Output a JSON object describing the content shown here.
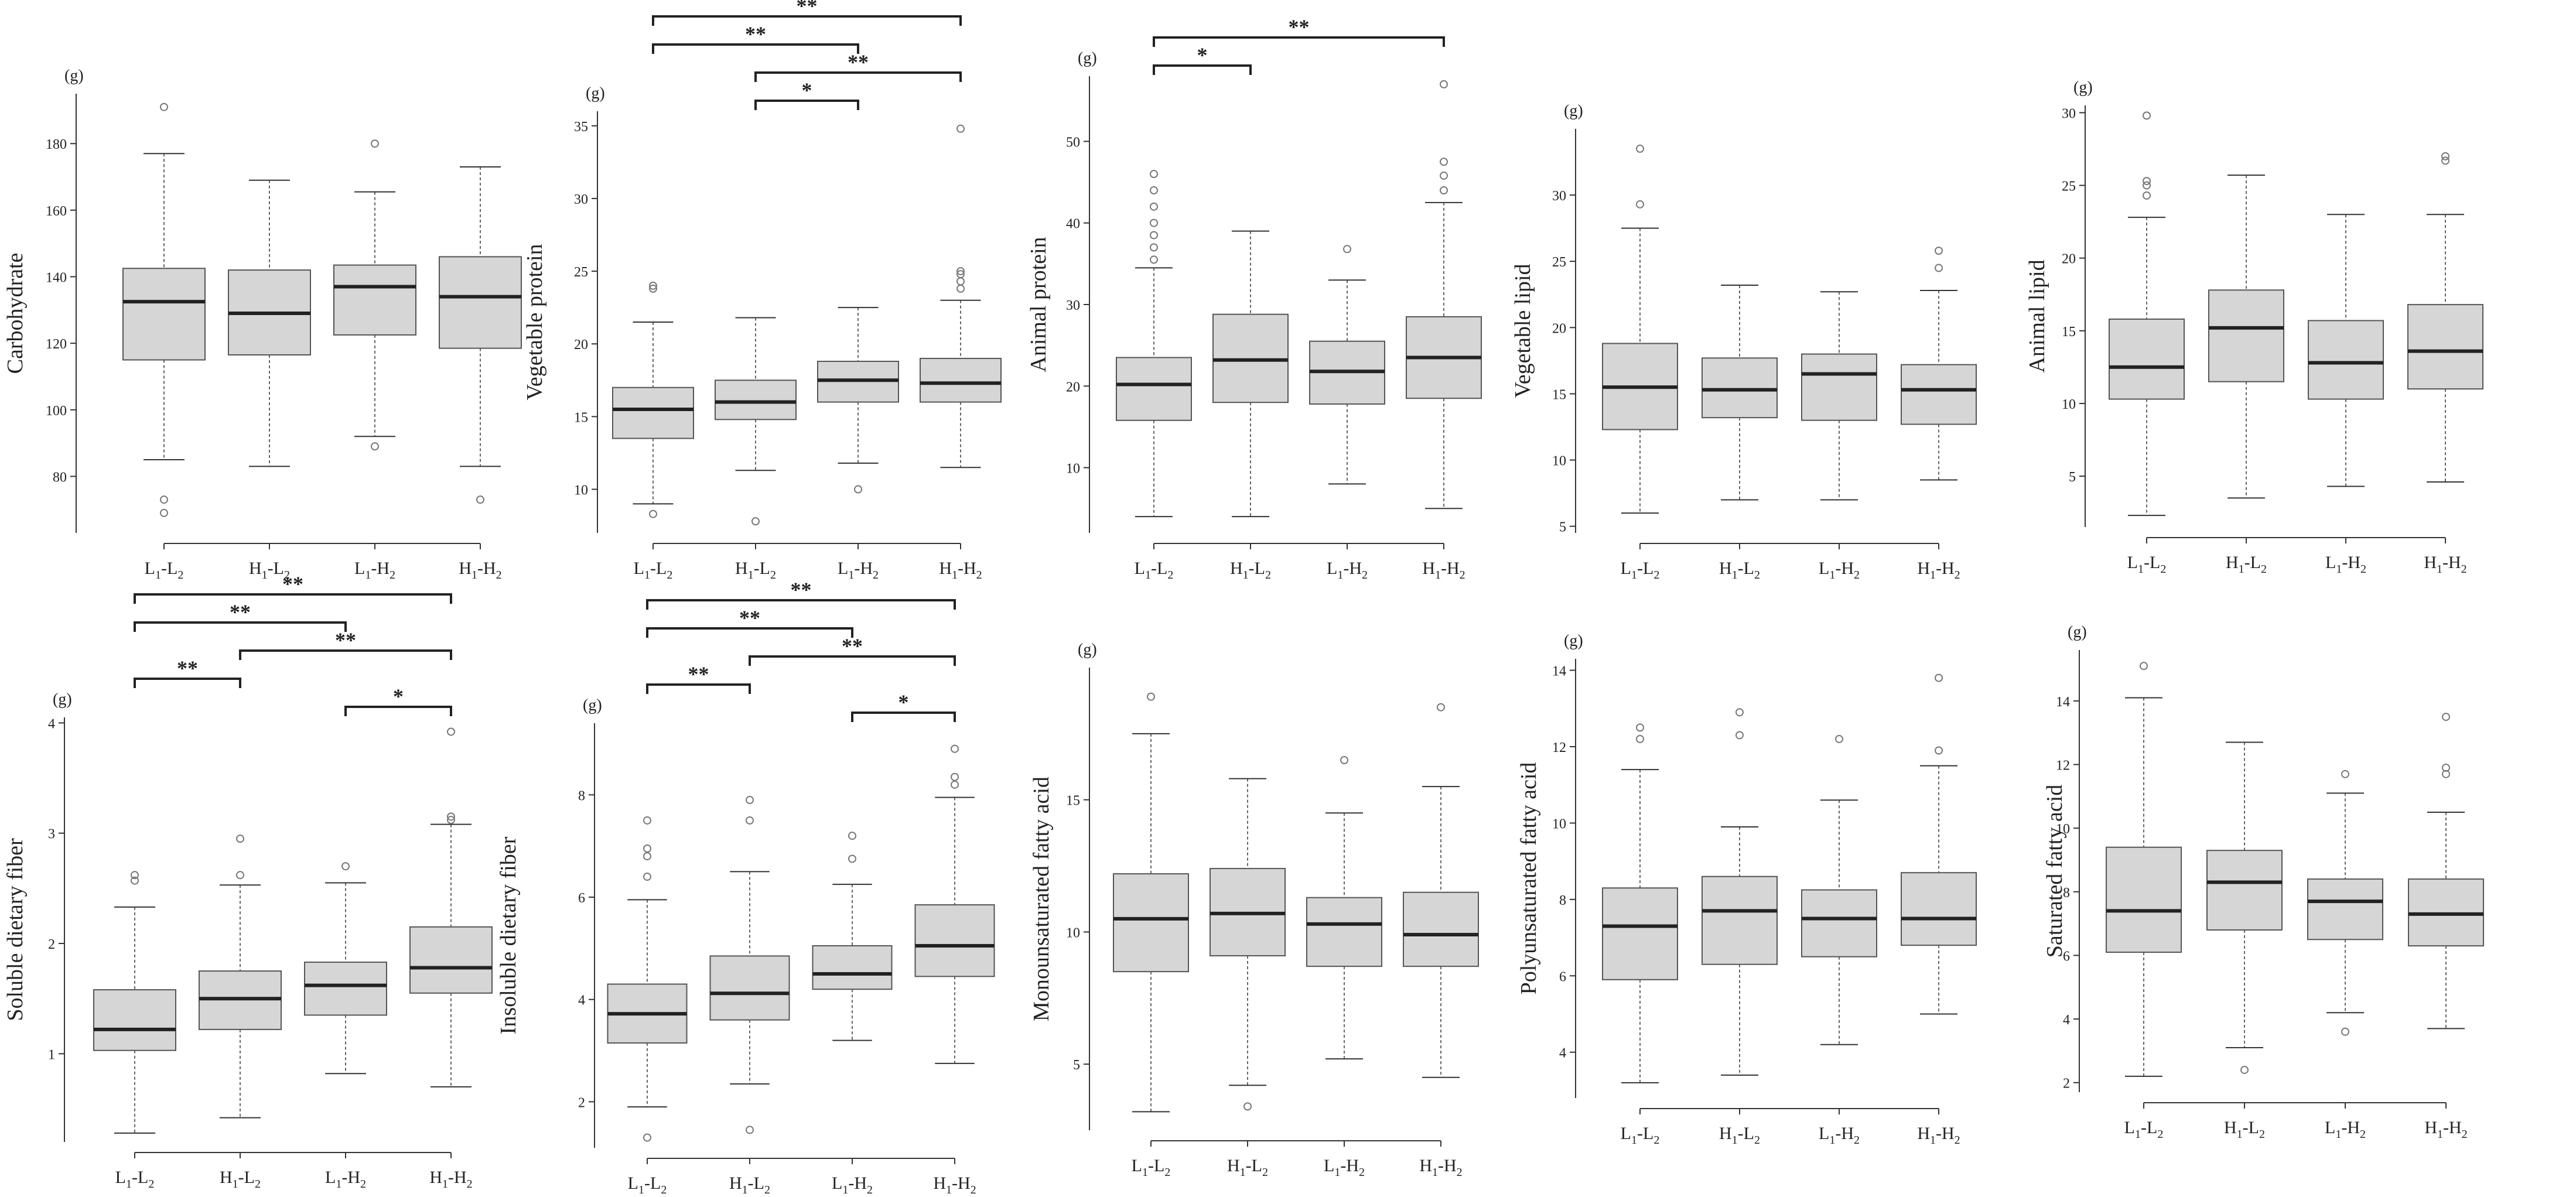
{
  "style": {
    "box_fill": "#d6d6d6",
    "box_stroke": "#555555",
    "median_color": "#222222",
    "axis_color": "#333333",
    "whisker_color": "#666666",
    "outlier_color": "#777777",
    "bracket_color": "#222222"
  },
  "chart_data": [
    {
      "type": "box",
      "unit_label": "(g)",
      "ylabel": "Carbohydrate",
      "yticks": [
        80,
        100,
        120,
        140,
        160,
        180
      ],
      "ylim": [
        63,
        195
      ],
      "categories": [
        {
          "pre": "L",
          "sub1": "1",
          "mid": "-L",
          "sub2": "2"
        },
        {
          "pre": "H",
          "sub1": "1",
          "mid": "-L",
          "sub2": "2"
        },
        {
          "pre": "L",
          "sub1": "1",
          "mid": "-H",
          "sub2": "2"
        },
        {
          "pre": "H",
          "sub1": "1",
          "mid": "-H",
          "sub2": "2"
        }
      ],
      "boxes": [
        {
          "min": 85,
          "q1": 115,
          "median": 132.5,
          "q3": 142.5,
          "max": 177,
          "outliers": [
            191,
            73,
            69
          ]
        },
        {
          "min": 83,
          "q1": 116.5,
          "median": 129,
          "q3": 142,
          "max": 169,
          "outliers": []
        },
        {
          "min": 92,
          "q1": 122.5,
          "median": 137,
          "q3": 143.5,
          "max": 165.5,
          "outliers": [
            180,
            89
          ]
        },
        {
          "min": 83,
          "q1": 118.5,
          "median": 134,
          "q3": 146,
          "max": 173,
          "outliers": [
            73
          ]
        }
      ],
      "brackets": []
    },
    {
      "type": "box",
      "unit_label": "(g)",
      "ylabel": "Vegetable protein",
      "yticks": [
        10,
        15,
        20,
        25,
        30,
        35
      ],
      "ylim": [
        7,
        36
      ],
      "categories": [
        {
          "pre": "L",
          "sub1": "1",
          "mid": "-L",
          "sub2": "2"
        },
        {
          "pre": "H",
          "sub1": "1",
          "mid": "-L",
          "sub2": "2"
        },
        {
          "pre": "L",
          "sub1": "1",
          "mid": "-H",
          "sub2": "2"
        },
        {
          "pre": "H",
          "sub1": "1",
          "mid": "-H",
          "sub2": "2"
        }
      ],
      "boxes": [
        {
          "min": 9,
          "q1": 13.5,
          "median": 15.5,
          "q3": 17,
          "max": 21.5,
          "outliers": [
            23.8,
            24,
            8.3
          ]
        },
        {
          "min": 11.3,
          "q1": 14.8,
          "median": 16,
          "q3": 17.5,
          "max": 21.8,
          "outliers": [
            7.8
          ]
        },
        {
          "min": 11.8,
          "q1": 16,
          "median": 17.5,
          "q3": 18.8,
          "max": 22.5,
          "outliers": [
            10
          ]
        },
        {
          "min": 11.5,
          "q1": 16,
          "median": 17.3,
          "q3": 19,
          "max": 23,
          "outliers": [
            23.8,
            24.3,
            24.8,
            25,
            34.8
          ]
        }
      ],
      "brackets": [
        {
          "from": 0,
          "to": 3,
          "label": "**"
        },
        {
          "from": 0,
          "to": 2,
          "label": "**"
        },
        {
          "from": 1,
          "to": 3,
          "label": "**"
        },
        {
          "from": 1,
          "to": 2,
          "label": "*"
        }
      ]
    },
    {
      "type": "box",
      "unit_label": "(g)",
      "ylabel": "Animal protein",
      "yticks": [
        10,
        20,
        30,
        40,
        50
      ],
      "ylim": [
        2,
        58
      ],
      "categories": [
        {
          "pre": "L",
          "sub1": "1",
          "mid": "-L",
          "sub2": "2"
        },
        {
          "pre": "H",
          "sub1": "1",
          "mid": "-L",
          "sub2": "2"
        },
        {
          "pre": "L",
          "sub1": "1",
          "mid": "-H",
          "sub2": "2"
        },
        {
          "pre": "H",
          "sub1": "1",
          "mid": "-H",
          "sub2": "2"
        }
      ],
      "boxes": [
        {
          "min": 4,
          "q1": 15.8,
          "median": 20.2,
          "q3": 23.5,
          "max": 34.5,
          "outliers": [
            35.5,
            37,
            38.5,
            40,
            42,
            44,
            46
          ]
        },
        {
          "min": 4,
          "q1": 18,
          "median": 23.2,
          "q3": 28.8,
          "max": 39,
          "outliers": []
        },
        {
          "min": 8,
          "q1": 17.8,
          "median": 21.8,
          "q3": 25.5,
          "max": 33,
          "outliers": [
            36.8
          ]
        },
        {
          "min": 5,
          "q1": 18.5,
          "median": 23.5,
          "q3": 28.5,
          "max": 42.5,
          "outliers": [
            44,
            45.8,
            47.5,
            57
          ]
        }
      ],
      "brackets": [
        {
          "from": 0,
          "to": 3,
          "label": "**"
        },
        {
          "from": 0,
          "to": 1,
          "label": "*"
        }
      ]
    },
    {
      "type": "box",
      "unit_label": "(g)",
      "ylabel": "Vegetable lipid",
      "yticks": [
        5,
        10,
        15,
        20,
        25,
        30
      ],
      "ylim": [
        4.5,
        35
      ],
      "categories": [
        {
          "pre": "L",
          "sub1": "1",
          "mid": "-L",
          "sub2": "2"
        },
        {
          "pre": "H",
          "sub1": "1",
          "mid": "-L",
          "sub2": "2"
        },
        {
          "pre": "L",
          "sub1": "1",
          "mid": "-H",
          "sub2": "2"
        },
        {
          "pre": "H",
          "sub1": "1",
          "mid": "-H",
          "sub2": "2"
        }
      ],
      "boxes": [
        {
          "min": 6,
          "q1": 12.3,
          "median": 15.5,
          "q3": 18.8,
          "max": 27.5,
          "outliers": [
            29.3,
            33.5
          ]
        },
        {
          "min": 7,
          "q1": 13.2,
          "median": 15.3,
          "q3": 17.7,
          "max": 23.2,
          "outliers": []
        },
        {
          "min": 7,
          "q1": 13,
          "median": 16.5,
          "q3": 18,
          "max": 22.7,
          "outliers": []
        },
        {
          "min": 8.5,
          "q1": 12.7,
          "median": 15.3,
          "q3": 17.2,
          "max": 22.8,
          "outliers": [
            24.5,
            25.8
          ]
        }
      ],
      "brackets": []
    },
    {
      "type": "box",
      "unit_label": "(g)",
      "ylabel": "Animal lipid",
      "yticks": [
        5,
        10,
        15,
        20,
        25,
        30
      ],
      "ylim": [
        1.5,
        30.5
      ],
      "categories": [
        {
          "pre": "L",
          "sub1": "1",
          "mid": "-L",
          "sub2": "2"
        },
        {
          "pre": "H",
          "sub1": "1",
          "mid": "-L",
          "sub2": "2"
        },
        {
          "pre": "L",
          "sub1": "1",
          "mid": "-H",
          "sub2": "2"
        },
        {
          "pre": "H",
          "sub1": "1",
          "mid": "-H",
          "sub2": "2"
        }
      ],
      "boxes": [
        {
          "min": 2.3,
          "q1": 10.3,
          "median": 12.5,
          "q3": 15.8,
          "max": 22.8,
          "outliers": [
            24.3,
            25,
            25.3,
            29.8
          ]
        },
        {
          "min": 3.5,
          "q1": 11.5,
          "median": 15.2,
          "q3": 17.8,
          "max": 25.7,
          "outliers": []
        },
        {
          "min": 4.3,
          "q1": 10.3,
          "median": 12.8,
          "q3": 15.7,
          "max": 23,
          "outliers": []
        },
        {
          "min": 4.6,
          "q1": 11,
          "median": 13.6,
          "q3": 16.8,
          "max": 23,
          "outliers": [
            26.7,
            27
          ]
        }
      ],
      "brackets": []
    },
    {
      "type": "box",
      "unit_label": "(g)",
      "ylabel": "Soluble dietary fiber",
      "yticks": [
        1,
        2,
        3,
        4
      ],
      "ylim": [
        0.2,
        4.05
      ],
      "categories": [
        {
          "pre": "L",
          "sub1": "1",
          "mid": "-L",
          "sub2": "2"
        },
        {
          "pre": "H",
          "sub1": "1",
          "mid": "-L",
          "sub2": "2"
        },
        {
          "pre": "L",
          "sub1": "1",
          "mid": "-H",
          "sub2": "2"
        },
        {
          "pre": "H",
          "sub1": "1",
          "mid": "-H",
          "sub2": "2"
        }
      ],
      "boxes": [
        {
          "min": 0.28,
          "q1": 1.03,
          "median": 1.22,
          "q3": 1.58,
          "max": 2.33,
          "outliers": [
            2.57,
            2.62
          ]
        },
        {
          "min": 0.42,
          "q1": 1.22,
          "median": 1.5,
          "q3": 1.75,
          "max": 2.53,
          "outliers": [
            2.62,
            2.95
          ]
        },
        {
          "min": 0.82,
          "q1": 1.35,
          "median": 1.62,
          "q3": 1.83,
          "max": 2.55,
          "outliers": [
            2.7
          ]
        },
        {
          "min": 0.7,
          "q1": 1.55,
          "median": 1.78,
          "q3": 2.15,
          "max": 3.08,
          "outliers": [
            3.12,
            3.15,
            3.92
          ]
        }
      ],
      "brackets": [
        {
          "from": 0,
          "to": 3,
          "label": "**"
        },
        {
          "from": 0,
          "to": 2,
          "label": "**"
        },
        {
          "from": 1,
          "to": 3,
          "label": "**"
        },
        {
          "from": 0,
          "to": 1,
          "label": "**"
        },
        {
          "from": 2,
          "to": 3,
          "label": "*"
        }
      ]
    },
    {
      "type": "box",
      "unit_label": "(g)",
      "ylabel": "Insoluble dietary fiber",
      "yticks": [
        2,
        4,
        6,
        8
      ],
      "ylim": [
        1.1,
        9.4
      ],
      "categories": [
        {
          "pre": "L",
          "sub1": "1",
          "mid": "-L",
          "sub2": "2"
        },
        {
          "pre": "H",
          "sub1": "1",
          "mid": "-L",
          "sub2": "2"
        },
        {
          "pre": "L",
          "sub1": "1",
          "mid": "-H",
          "sub2": "2"
        },
        {
          "pre": "H",
          "sub1": "1",
          "mid": "-H",
          "sub2": "2"
        }
      ],
      "boxes": [
        {
          "min": 1.9,
          "q1": 3.15,
          "median": 3.72,
          "q3": 4.3,
          "max": 5.95,
          "outliers": [
            6.4,
            6.8,
            6.95,
            7.5,
            1.3
          ]
        },
        {
          "min": 2.35,
          "q1": 3.6,
          "median": 4.12,
          "q3": 4.85,
          "max": 6.5,
          "outliers": [
            7.5,
            7.9,
            1.45
          ]
        },
        {
          "min": 3.2,
          "q1": 4.2,
          "median": 4.5,
          "q3": 5.05,
          "max": 6.25,
          "outliers": [
            6.75,
            7.2
          ]
        },
        {
          "min": 2.75,
          "q1": 4.45,
          "median": 5.05,
          "q3": 5.85,
          "max": 7.95,
          "outliers": [
            8.2,
            8.35,
            8.9
          ]
        }
      ],
      "brackets": [
        {
          "from": 0,
          "to": 3,
          "label": "**"
        },
        {
          "from": 0,
          "to": 2,
          "label": "**"
        },
        {
          "from": 1,
          "to": 3,
          "label": "**"
        },
        {
          "from": 0,
          "to": 1,
          "label": "**"
        },
        {
          "from": 2,
          "to": 3,
          "label": "*"
        }
      ]
    },
    {
      "type": "box",
      "unit_label": "(g)",
      "ylabel": "Monounsaturated fatty acid",
      "yticks": [
        5,
        10,
        15
      ],
      "ylim": [
        2.5,
        20
      ],
      "categories": [
        {
          "pre": "L",
          "sub1": "1",
          "mid": "-L",
          "sub2": "2"
        },
        {
          "pre": "H",
          "sub1": "1",
          "mid": "-L",
          "sub2": "2"
        },
        {
          "pre": "L",
          "sub1": "1",
          "mid": "-H",
          "sub2": "2"
        },
        {
          "pre": "H",
          "sub1": "1",
          "mid": "-H",
          "sub2": "2"
        }
      ],
      "boxes": [
        {
          "min": 3.2,
          "q1": 8.5,
          "median": 10.5,
          "q3": 12.2,
          "max": 17.5,
          "outliers": [
            18.9
          ]
        },
        {
          "min": 4.2,
          "q1": 9.1,
          "median": 10.7,
          "q3": 12.4,
          "max": 15.8,
          "outliers": [
            3.4
          ]
        },
        {
          "min": 5.2,
          "q1": 8.7,
          "median": 10.3,
          "q3": 11.3,
          "max": 14.5,
          "outliers": [
            16.5
          ]
        },
        {
          "min": 4.5,
          "q1": 8.7,
          "median": 9.9,
          "q3": 11.5,
          "max": 15.5,
          "outliers": [
            18.5
          ]
        }
      ],
      "brackets": []
    },
    {
      "type": "box",
      "unit_label": "(g)",
      "ylabel": "Polyunsaturated fatty acid",
      "yticks": [
        4,
        6,
        8,
        10,
        12,
        14
      ],
      "ylim": [
        2.8,
        14.3
      ],
      "categories": [
        {
          "pre": "L",
          "sub1": "1",
          "mid": "-L",
          "sub2": "2"
        },
        {
          "pre": "H",
          "sub1": "1",
          "mid": "-L",
          "sub2": "2"
        },
        {
          "pre": "L",
          "sub1": "1",
          "mid": "-H",
          "sub2": "2"
        },
        {
          "pre": "H",
          "sub1": "1",
          "mid": "-H",
          "sub2": "2"
        }
      ],
      "boxes": [
        {
          "min": 3.2,
          "q1": 5.9,
          "median": 7.3,
          "q3": 8.3,
          "max": 11.4,
          "outliers": [
            12.2,
            12.5
          ]
        },
        {
          "min": 3.4,
          "q1": 6.3,
          "median": 7.7,
          "q3": 8.6,
          "max": 9.9,
          "outliers": [
            12.3,
            12.9
          ]
        },
        {
          "min": 4.2,
          "q1": 6.5,
          "median": 7.5,
          "q3": 8.25,
          "max": 10.6,
          "outliers": [
            12.2
          ]
        },
        {
          "min": 5,
          "q1": 6.8,
          "median": 7.5,
          "q3": 8.7,
          "max": 11.5,
          "outliers": [
            11.9,
            13.8
          ]
        }
      ],
      "brackets": []
    },
    {
      "type": "box",
      "unit_label": "(g)",
      "ylabel": "Saturated fatty acid",
      "yticks": [
        2,
        4,
        6,
        8,
        10,
        12,
        14
      ],
      "ylim": [
        1.7,
        15.6
      ],
      "categories": [
        {
          "pre": "L",
          "sub1": "1",
          "mid": "-L",
          "sub2": "2"
        },
        {
          "pre": "H",
          "sub1": "1",
          "mid": "-L",
          "sub2": "2"
        },
        {
          "pre": "L",
          "sub1": "1",
          "mid": "-H",
          "sub2": "2"
        },
        {
          "pre": "H",
          "sub1": "1",
          "mid": "-H",
          "sub2": "2"
        }
      ],
      "boxes": [
        {
          "min": 2.2,
          "q1": 6.1,
          "median": 7.4,
          "q3": 9.4,
          "max": 14.1,
          "outliers": [
            15.1
          ]
        },
        {
          "min": 3.1,
          "q1": 6.8,
          "median": 8.3,
          "q3": 9.3,
          "max": 12.7,
          "outliers": [
            2.4
          ]
        },
        {
          "min": 4.2,
          "q1": 6.5,
          "median": 7.7,
          "q3": 8.4,
          "max": 11.1,
          "outliers": [
            11.7,
            3.6
          ]
        },
        {
          "min": 3.7,
          "q1": 6.3,
          "median": 7.3,
          "q3": 8.4,
          "max": 10.5,
          "outliers": [
            11.7,
            11.9,
            13.5
          ]
        }
      ],
      "brackets": []
    }
  ]
}
